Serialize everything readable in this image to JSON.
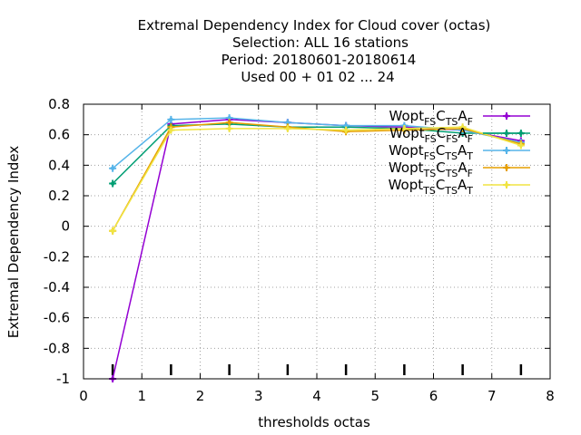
{
  "chart_data": {
    "type": "line",
    "title_lines": [
      "Extremal Dependency Index  for Cloud cover (octas)",
      "Selection: ALL     16 stations",
      "Period: 20180601-20180614",
      "Used  00 + 01 02 ... 24"
    ],
    "xlabel": "thresholds octas",
    "ylabel": "Extremal Dependency Index",
    "xlim": [
      0,
      8
    ],
    "ylim": [
      -1,
      0.8
    ],
    "xticks": [
      "0",
      "1",
      "2",
      "3",
      "4",
      "5",
      "6",
      "7",
      "8"
    ],
    "yticks": [
      "-1",
      "-0.8",
      "-0.6",
      "-0.4",
      "-0.2",
      "0",
      "0.2",
      "0.4",
      "0.6",
      "0.8"
    ],
    "grid": true,
    "legend_position": "top-right",
    "x": [
      0.5,
      1.5,
      2.5,
      3.5,
      4.5,
      5.5,
      6.5,
      7.5
    ],
    "threshold_markers": [
      0.5,
      1.5,
      2.5,
      3.5,
      4.5,
      5.5,
      6.5,
      7.5
    ],
    "series": [
      {
        "legend": {
          "base": "Wopt",
          "s1": "FS",
          "c": "C",
          "s2": "TS",
          "a": "A",
          "s3": "F"
        },
        "color": "#9400d3",
        "marker": "plus",
        "values": [
          -1.0,
          0.67,
          0.7,
          0.68,
          0.66,
          0.65,
          0.63,
          0.56
        ]
      },
      {
        "legend": {
          "base": "Wopt",
          "s1": "FS",
          "c": "C",
          "s2": "FS",
          "a": "A",
          "s3": "F"
        },
        "color": "#009e73",
        "marker": "plus",
        "values": [
          0.28,
          0.66,
          0.67,
          0.65,
          0.65,
          0.64,
          0.61,
          0.61
        ]
      },
      {
        "legend": {
          "base": "Wopt",
          "s1": "FS",
          "c": "C",
          "s2": "TS",
          "a": "A",
          "s3": "T"
        },
        "color": "#56b4e9",
        "marker": "plus",
        "values": [
          0.38,
          0.7,
          0.71,
          0.68,
          0.66,
          0.66,
          0.63,
          0.55
        ]
      },
      {
        "legend": {
          "base": "Wopt",
          "s1": "TS",
          "c": "C",
          "s2": "TS",
          "a": "A",
          "s3": "F"
        },
        "color": "#e69f00",
        "marker": "plus",
        "values": [
          -0.03,
          0.65,
          0.68,
          0.65,
          0.62,
          0.63,
          0.64,
          0.54
        ]
      },
      {
        "legend": {
          "base": "Wopt",
          "s1": "TS",
          "c": "C",
          "s2": "TS",
          "a": "A",
          "s3": "T"
        },
        "color": "#f0e442",
        "marker": "plus",
        "values": [
          -0.03,
          0.63,
          0.64,
          0.64,
          0.63,
          0.64,
          0.65,
          0.53
        ]
      }
    ]
  }
}
